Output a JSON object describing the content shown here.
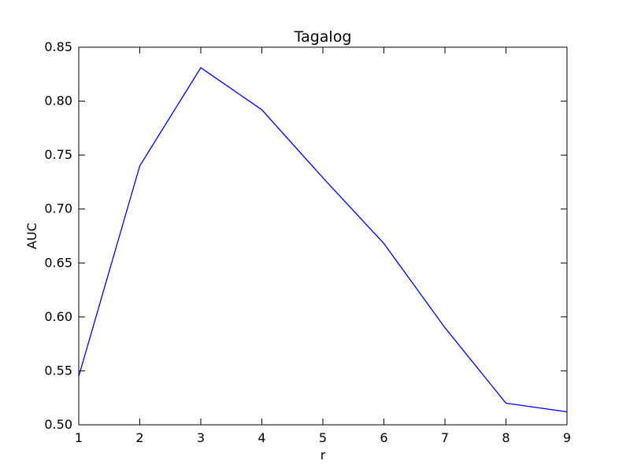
{
  "chart_data": {
    "type": "line",
    "title": "Tagalog",
    "xlabel": "r",
    "ylabel": "AUC",
    "xlim": [
      1,
      9
    ],
    "ylim": [
      0.5,
      0.85
    ],
    "x_ticks": [
      "1",
      "2",
      "3",
      "4",
      "5",
      "6",
      "7",
      "8",
      "9"
    ],
    "y_ticks": [
      "0.50",
      "0.55",
      "0.60",
      "0.65",
      "0.70",
      "0.75",
      "0.80",
      "0.85"
    ],
    "grid": false,
    "legend": "none",
    "series": [
      {
        "color": "#0000ff",
        "x": [
          1,
          2,
          3,
          4,
          5,
          6,
          7,
          8,
          9
        ],
        "y": [
          0.545,
          0.74,
          0.831,
          0.792,
          0.729,
          0.668,
          0.59,
          0.52,
          0.512
        ]
      }
    ]
  }
}
